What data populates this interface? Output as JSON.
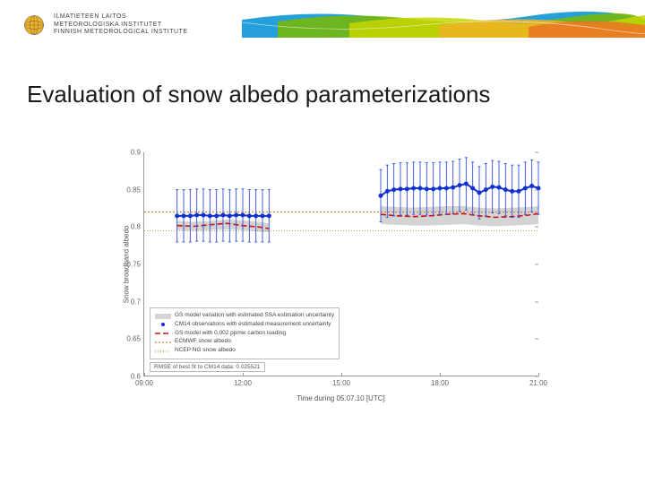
{
  "header": {
    "org_line1": "ILMATIETEEN LAITOS",
    "org_line2": "METEOROLOGISKA INSTITUTET",
    "org_line3": "FINNISH METEOROLOGICAL INSTITUTE",
    "ribbon_colors": [
      "#008fd5",
      "#7ab800",
      "#c4d600",
      "#f0b323",
      "#e87722"
    ]
  },
  "title": "Evaluation of snow albedo parameterizations",
  "chart": {
    "type": "line",
    "ylabel": "Snow broadband albedo",
    "xlabel": "Time during 05.07.10 [UTC]",
    "ylim": [
      0.6,
      0.9
    ],
    "yticks": [
      0.6,
      0.65,
      0.7,
      0.75,
      0.8,
      0.85,
      0.9
    ],
    "xlim": [
      9,
      21
    ],
    "xticks": [
      9,
      12,
      15,
      18,
      21
    ],
    "xtick_labels": [
      "09:00",
      "12:00",
      "15:00",
      "18:00",
      "21:00"
    ],
    "background_color": "#ffffff",
    "axis_color": "#999999",
    "tick_fontsize": 8,
    "label_fontsize": 8,
    "series": {
      "gs_band_upper": {
        "type": "band_edge",
        "color": "#b0b0b0"
      },
      "gs_band_lower": {
        "type": "band_edge",
        "color": "#b0b0b0"
      },
      "cm14_obs": {
        "label": "CM14 observations with estimated measurement uncertainty",
        "color": "#1030d0",
        "marker": "circle",
        "marker_size": 2.5,
        "line_width": 2,
        "errorbar_color": "#3050e0",
        "x": [
          10.0,
          10.2,
          10.4,
          10.6,
          10.8,
          11.0,
          11.2,
          11.4,
          11.6,
          11.8,
          12.0,
          12.2,
          12.4,
          12.6,
          12.8,
          16.2,
          16.4,
          16.6,
          16.8,
          17.0,
          17.2,
          17.4,
          17.6,
          17.8,
          18.0,
          18.2,
          18.4,
          18.6,
          18.8,
          19.0,
          19.2,
          19.4,
          19.6,
          19.8,
          20.0,
          20.2,
          20.4,
          20.6,
          20.8,
          21.0
        ],
        "y": [
          0.815,
          0.815,
          0.815,
          0.816,
          0.816,
          0.815,
          0.815,
          0.816,
          0.815,
          0.816,
          0.816,
          0.815,
          0.815,
          0.815,
          0.815,
          0.842,
          0.848,
          0.85,
          0.851,
          0.851,
          0.852,
          0.852,
          0.851,
          0.851,
          0.852,
          0.852,
          0.853,
          0.856,
          0.858,
          0.852,
          0.846,
          0.85,
          0.854,
          0.853,
          0.85,
          0.848,
          0.848,
          0.852,
          0.855,
          0.852
        ],
        "yerr": 0.035
      },
      "gs_band": {
        "label": "GS model variation with estimated SSA estimation uncertainty",
        "color": "#b0b0b0",
        "fill_opacity": 0.55,
        "x": [
          10.0,
          10.5,
          11.0,
          11.5,
          12.0,
          12.5,
          12.8,
          16.2,
          16.7,
          17.2,
          17.7,
          18.2,
          18.7,
          19.2,
          19.7,
          20.2,
          20.7,
          21.0
        ],
        "y_upper": [
          0.808,
          0.807,
          0.808,
          0.81,
          0.809,
          0.807,
          0.805,
          0.828,
          0.827,
          0.826,
          0.827,
          0.828,
          0.828,
          0.826,
          0.825,
          0.826,
          0.827,
          0.828
        ],
        "y_lower": [
          0.796,
          0.795,
          0.796,
          0.797,
          0.796,
          0.794,
          0.793,
          0.804,
          0.803,
          0.802,
          0.802,
          0.803,
          0.804,
          0.802,
          0.801,
          0.802,
          0.803,
          0.804
        ]
      },
      "gs_carbon": {
        "label": "GS model with 0.002 ppmw carbon loading",
        "color": "#d01010",
        "line_width": 1.6,
        "dash": "6,3",
        "x": [
          10.0,
          10.5,
          11.0,
          11.5,
          12.0,
          12.5,
          12.8,
          16.2,
          16.7,
          17.2,
          17.7,
          18.2,
          18.7,
          19.2,
          19.7,
          20.2,
          20.7,
          21.0
        ],
        "y": [
          0.802,
          0.801,
          0.803,
          0.805,
          0.802,
          0.8,
          0.798,
          0.817,
          0.815,
          0.814,
          0.815,
          0.817,
          0.818,
          0.815,
          0.813,
          0.814,
          0.816,
          0.818
        ]
      },
      "ecmwf": {
        "label": "ECMWF snow albedo",
        "color": "#c06000",
        "line_width": 0.8,
        "dash": "2,2",
        "x": [
          9.0,
          21.0
        ],
        "y": [
          0.82,
          0.82
        ]
      },
      "ncep": {
        "label": "NCEP NG snow albedo",
        "color": "#7a9a00",
        "line_width": 0.8,
        "dash": "1,2",
        "x": [
          9.0,
          21.0
        ],
        "y": [
          0.795,
          0.795
        ]
      }
    },
    "rmse_text": "RMSE of best fit to CM14 data: 0.025521",
    "legend_border": "#bbbbbb"
  }
}
